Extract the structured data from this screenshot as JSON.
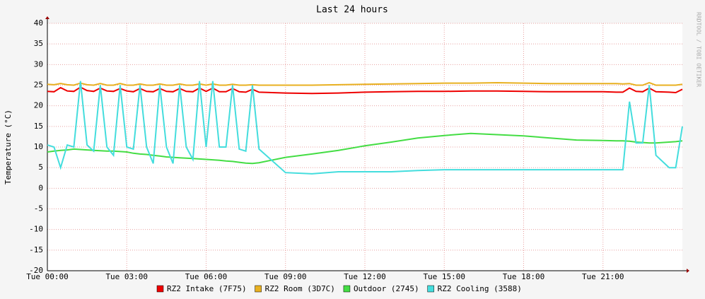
{
  "chart_data": {
    "type": "line",
    "title": "Last 24 hours",
    "y_label": "Temperature (°C)",
    "watermark": "RRDTOOL / TOBI OETIKER",
    "x": [
      0,
      0.25,
      0.5,
      0.75,
      1,
      1.25,
      1.5,
      1.75,
      2,
      2.25,
      2.5,
      2.75,
      3,
      3.25,
      3.5,
      3.75,
      4,
      4.25,
      4.5,
      4.75,
      5,
      5.25,
      5.5,
      5.75,
      6,
      6.25,
      6.5,
      6.75,
      7,
      7.25,
      7.5,
      7.75,
      8,
      9,
      10,
      11,
      12,
      13,
      14,
      15,
      16,
      17,
      18,
      19,
      20,
      21,
      21.5,
      21.75,
      22,
      22.25,
      22.5,
      22.75,
      23,
      23.5,
      23.75,
      24
    ],
    "xlim": [
      0,
      24
    ],
    "xticks": [
      {
        "value": 0,
        "label": "Tue 00:00"
      },
      {
        "value": 3,
        "label": "Tue 03:00"
      },
      {
        "value": 6,
        "label": "Tue 06:00"
      },
      {
        "value": 9,
        "label": "Tue 09:00"
      },
      {
        "value": 12,
        "label": "Tue 12:00"
      },
      {
        "value": 15,
        "label": "Tue 15:00"
      },
      {
        "value": 18,
        "label": "Tue 18:00"
      },
      {
        "value": 21,
        "label": "Tue 21:00"
      }
    ],
    "ylim": [
      -20,
      40
    ],
    "yticks": [
      -20,
      -15,
      -10,
      -5,
      0,
      5,
      10,
      15,
      20,
      25,
      30,
      35,
      40
    ],
    "grid": true,
    "series": [
      {
        "name": "RZ2 Intake (7F75)",
        "color": "#ee0000",
        "values": [
          23.5,
          23.4,
          24.4,
          23.6,
          23.5,
          24.5,
          23.7,
          23.5,
          24.3,
          23.6,
          23.5,
          24.2,
          23.6,
          23.4,
          24.2,
          23.5,
          23.4,
          24.2,
          23.5,
          23.4,
          24.2,
          23.5,
          23.4,
          24.3,
          23.5,
          24.3,
          23.4,
          23.4,
          24.2,
          23.4,
          23.3,
          24,
          23.3,
          23.1,
          23,
          23.1,
          23.3,
          23.4,
          23.5,
          23.5,
          23.6,
          23.6,
          23.5,
          23.4,
          23.4,
          23.4,
          23.3,
          23.3,
          24.3,
          23.5,
          23.4,
          24.3,
          23.4,
          23.3,
          23.2,
          24
        ]
      },
      {
        "name": "RZ2 Room (3D7C)",
        "color": "#e8b020",
        "values": [
          25.2,
          25.1,
          25.4,
          25.1,
          25,
          25.5,
          25.1,
          25,
          25.4,
          25,
          25,
          25.4,
          25,
          25,
          25.3,
          25,
          25,
          25.3,
          25,
          25,
          25.3,
          25,
          25,
          25.3,
          25,
          25.3,
          25,
          25,
          25.2,
          25,
          25,
          25.1,
          25,
          25,
          25,
          25.1,
          25.2,
          25.3,
          25.4,
          25.5,
          25.5,
          25.6,
          25.5,
          25.4,
          25.4,
          25.4,
          25.4,
          25.3,
          25.4,
          25,
          25,
          25.6,
          25,
          25,
          25,
          25.2
        ]
      },
      {
        "name": "Outdoor (2745)",
        "color": "#44dd44",
        "values": [
          8.8,
          9,
          9.2,
          9.3,
          9.5,
          9.4,
          9.3,
          9.2,
          9.1,
          9,
          9,
          8.9,
          8.8,
          8.5,
          8.3,
          8.2,
          8,
          7.8,
          7.6,
          7.5,
          7.4,
          7.3,
          7.2,
          7.1,
          7,
          6.9,
          6.8,
          6.6,
          6.5,
          6.3,
          6.1,
          6,
          6.2,
          7.5,
          8.3,
          9.2,
          10.3,
          11.2,
          12.2,
          12.8,
          13.3,
          13,
          12.7,
          12.2,
          11.7,
          11.6,
          11.5,
          11.5,
          11.4,
          11.2,
          11.1,
          11,
          11,
          11.2,
          11.3,
          11.5
        ]
      },
      {
        "name": "RZ2 Cooling (3588)",
        "color": "#44dddd",
        "values": [
          10.5,
          10,
          5,
          10.5,
          10,
          26,
          10.5,
          9,
          25,
          10,
          8,
          25,
          10,
          9.5,
          25,
          10,
          6,
          25,
          10,
          6,
          25,
          10,
          7,
          26,
          10,
          26,
          10,
          10,
          25,
          9.5,
          9,
          25,
          9.5,
          3.8,
          3.5,
          4,
          4,
          4,
          4.3,
          4.5,
          4.5,
          4.5,
          4.5,
          4.5,
          4.5,
          4.5,
          4.5,
          4.5,
          21,
          11,
          11,
          25,
          8,
          5,
          5,
          15
        ]
      }
    ]
  }
}
